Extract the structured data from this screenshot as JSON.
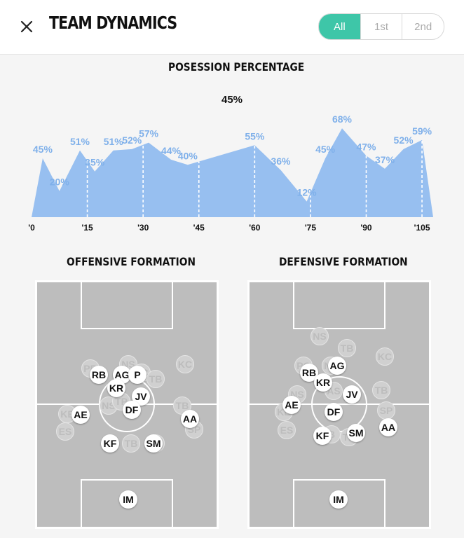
{
  "header": {
    "title": "TEAM DYNAMICS",
    "tabs": [
      {
        "label": "All",
        "active": true
      },
      {
        "label": "1st",
        "active": false
      },
      {
        "label": "2nd",
        "active": false
      }
    ],
    "accent_color": "#3ec6a8",
    "close_icon": "close-icon"
  },
  "possession": {
    "title": "POSESSION PERCENTAGE",
    "current": "45%",
    "fill_color": "#97bff0",
    "label_color": "#7fb0ea"
  },
  "chart_data": {
    "type": "area",
    "title": "POSESSION PERCENTAGE",
    "xlabel": "",
    "ylabel": "",
    "x_ticks": [
      "'0",
      "'15",
      "'30",
      "'45",
      "'60",
      "'75",
      "'90",
      "'105"
    ],
    "x_tick_values": [
      0,
      15,
      30,
      45,
      60,
      75,
      90,
      105
    ],
    "xlim": [
      0,
      108
    ],
    "ylim": [
      0,
      75
    ],
    "points": [
      {
        "x": 0,
        "y": 0
      },
      {
        "x": 3,
        "y": 45,
        "label": "45%"
      },
      {
        "x": 7.5,
        "y": 20,
        "label": "20%"
      },
      {
        "x": 13,
        "y": 51,
        "label": "51%"
      },
      {
        "x": 17,
        "y": 35,
        "label": "35%"
      },
      {
        "x": 22,
        "y": 51,
        "label": "51%"
      },
      {
        "x": 27,
        "y": 52,
        "label": "52%"
      },
      {
        "x": 31.5,
        "y": 57,
        "label": "57%"
      },
      {
        "x": 37.5,
        "y": 44,
        "label": "44%"
      },
      {
        "x": 42,
        "y": 40,
        "label": "40%"
      },
      {
        "x": 60,
        "y": 55,
        "label": "55%"
      },
      {
        "x": 67,
        "y": 36,
        "label": "36%"
      },
      {
        "x": 74,
        "y": 12,
        "label": "12%"
      },
      {
        "x": 79,
        "y": 45,
        "label": "45%"
      },
      {
        "x": 83.5,
        "y": 68,
        "label": "68%"
      },
      {
        "x": 90,
        "y": 47,
        "label": "47%"
      },
      {
        "x": 95,
        "y": 37,
        "label": "37%"
      },
      {
        "x": 100,
        "y": 52,
        "label": "52%"
      },
      {
        "x": 105,
        "y": 59,
        "label": "59%"
      },
      {
        "x": 108,
        "y": 0
      }
    ]
  },
  "offensive": {
    "title": "OFFENSIVE FORMATION",
    "opponents": [
      "NS",
      "PB",
      "PC",
      "TB",
      "KC",
      "NS",
      "TP",
      "KE",
      "ES",
      "TB",
      "SP",
      "TB",
      "TB"
    ],
    "players": [
      "RB",
      "AG",
      "P",
      "KR",
      "JV",
      "DF",
      "AE",
      "AA",
      "KF",
      "SM",
      "IM"
    ]
  },
  "defensive": {
    "title": "DEFENSIVE FORMATION",
    "opponents": [
      "NS",
      "TB",
      "KC",
      "PC",
      "NS",
      "NS",
      "AS",
      "TB",
      "SP",
      "KE",
      "ES",
      "B",
      "TB"
    ],
    "players": [
      "AG",
      "RB",
      "KR",
      "JV",
      "AE",
      "DF",
      "AA",
      "SM",
      "KF",
      "IM"
    ]
  }
}
